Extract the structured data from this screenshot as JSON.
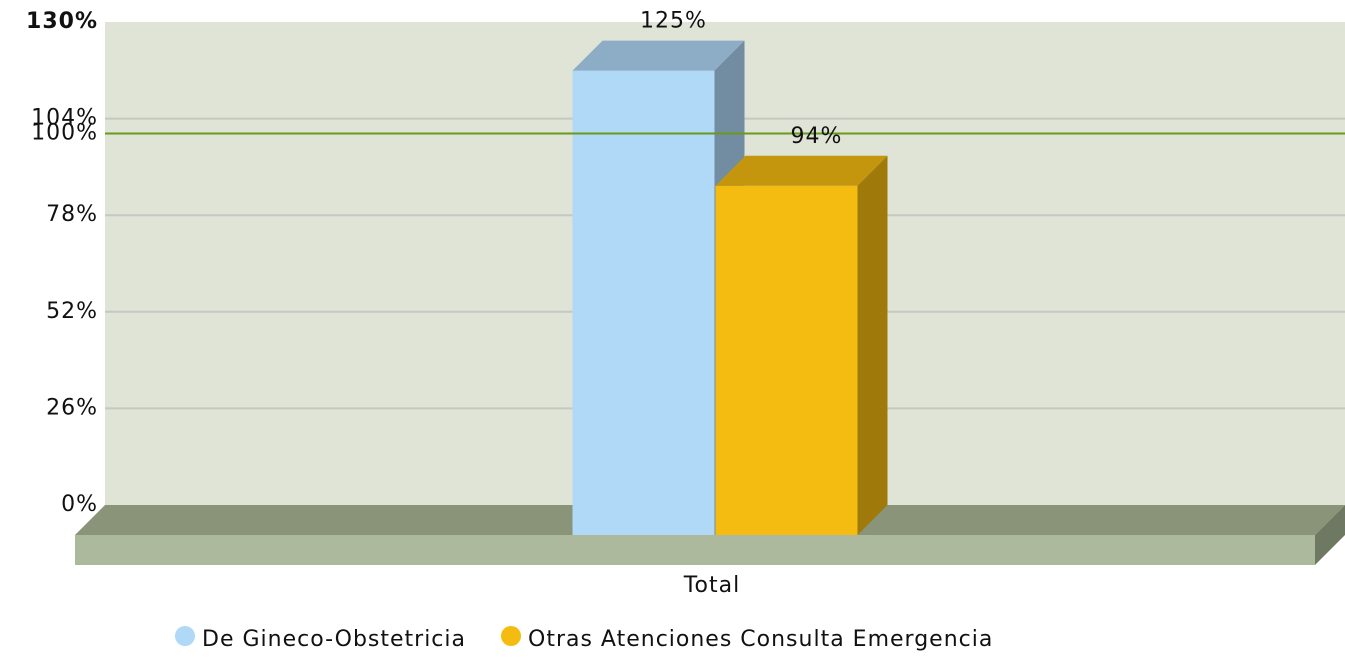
{
  "chart_data": {
    "type": "bar3d",
    "categories": [
      "Total"
    ],
    "series": [
      {
        "name": "De Gineco-Obstetricia",
        "color": "#b0d8f7",
        "values": [
          125
        ],
        "value_labels": [
          "125%"
        ]
      },
      {
        "name": "Otras Atenciones Consulta Emergencia",
        "color": "#f4bb10",
        "values": [
          94
        ],
        "value_labels": [
          "94%"
        ]
      }
    ],
    "ylim": [
      0,
      130
    ],
    "yticks": [
      {
        "value": 0,
        "label": "0%"
      },
      {
        "value": 26,
        "label": "26%"
      },
      {
        "value": 52,
        "label": "52%"
      },
      {
        "value": 78,
        "label": "78%"
      },
      {
        "value": 104,
        "label": "104%"
      },
      {
        "value": 130,
        "label": "130%"
      }
    ],
    "target": {
      "value": 100,
      "label": "100%",
      "color": "#6a9a1a"
    },
    "grid": true,
    "legend": "bottom"
  }
}
